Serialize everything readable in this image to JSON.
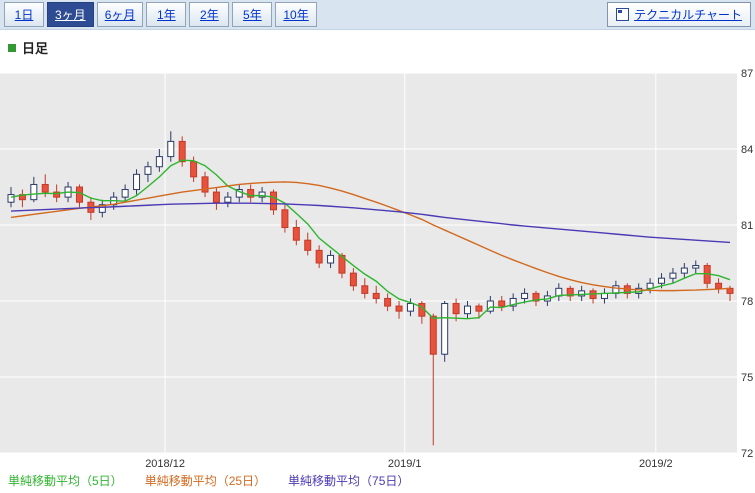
{
  "header": {
    "period_tabs": [
      {
        "label": "1日",
        "selected": false
      },
      {
        "label": "3ヶ月",
        "selected": true
      },
      {
        "label": "6ヶ月",
        "selected": false
      },
      {
        "label": "1年",
        "selected": false
      },
      {
        "label": "2年",
        "selected": false
      },
      {
        "label": "5年",
        "selected": false
      },
      {
        "label": "10年",
        "selected": false
      }
    ],
    "technical_chart_button": "テクニカルチャート"
  },
  "chart_header": {
    "label": "日足",
    "bullet_color": "#339933"
  },
  "chart_data": {
    "type": "candlestick",
    "title": "日足",
    "y_ticks": [
      87,
      84,
      81,
      78,
      75,
      72
    ],
    "ylim": [
      72,
      87
    ],
    "x_ticks": [
      {
        "label": "2018/12",
        "index": 14
      },
      {
        "label": "2019/1",
        "index": 35
      },
      {
        "label": "2019/2",
        "index": 57
      }
    ],
    "grid": true,
    "legend_position": "bottom",
    "candles": {
      "open": [
        81.9,
        82.2,
        82.0,
        82.6,
        82.3,
        82.1,
        82.5,
        81.9,
        81.5,
        81.8,
        82.1,
        82.4,
        83.0,
        83.3,
        83.7,
        84.3,
        83.5,
        82.9,
        82.3,
        81.9,
        82.1,
        82.4,
        82.1,
        82.3,
        81.6,
        80.9,
        80.4,
        80.0,
        79.5,
        79.8,
        79.1,
        78.6,
        78.3,
        78.1,
        77.8,
        77.6,
        77.9,
        77.4,
        75.9,
        77.9,
        77.5,
        77.8,
        77.6,
        78.0,
        77.8,
        78.1,
        78.3,
        78.0,
        78.2,
        78.5,
        78.2,
        78.4,
        78.1,
        78.3,
        78.6,
        78.3,
        78.5,
        78.7,
        78.9,
        79.1,
        79.3,
        79.4,
        78.7,
        78.5
      ],
      "high": [
        82.5,
        82.4,
        82.9,
        83.0,
        82.6,
        82.7,
        82.6,
        82.1,
        82.0,
        82.3,
        82.6,
        83.2,
        83.5,
        84.0,
        84.7,
        84.5,
        83.7,
        83.1,
        82.5,
        82.3,
        82.6,
        82.6,
        82.5,
        82.4,
        81.8,
        81.2,
        80.7,
        80.2,
        80.0,
        79.9,
        79.3,
        78.9,
        78.6,
        78.3,
        78.0,
        78.1,
        78.0,
        77.5,
        78.0,
        78.1,
        78.0,
        77.9,
        78.2,
        78.2,
        78.3,
        78.5,
        78.4,
        78.4,
        78.7,
        78.6,
        78.6,
        78.5,
        78.5,
        78.8,
        78.7,
        78.7,
        78.9,
        79.1,
        79.3,
        79.5,
        79.6,
        79.5,
        78.9,
        78.6
      ],
      "low": [
        81.7,
        81.7,
        81.9,
        82.1,
        81.9,
        81.9,
        81.7,
        81.2,
        81.3,
        81.6,
        81.9,
        82.2,
        82.7,
        83.1,
        83.5,
        83.3,
        82.7,
        82.1,
        81.6,
        81.7,
        81.9,
        81.9,
        81.9,
        81.4,
        80.7,
        80.2,
        79.8,
        79.3,
        79.3,
        78.9,
        78.4,
        78.1,
        77.9,
        77.6,
        77.3,
        77.4,
        77.1,
        72.3,
        75.6,
        77.2,
        77.3,
        77.3,
        77.5,
        77.6,
        77.6,
        77.9,
        77.8,
        77.8,
        78.0,
        78.0,
        78.0,
        77.9,
        77.9,
        78.1,
        78.1,
        78.1,
        78.3,
        78.5,
        78.7,
        78.9,
        79.1,
        78.5,
        78.3,
        78.0
      ],
      "close": [
        82.2,
        82.0,
        82.6,
        82.3,
        82.1,
        82.5,
        81.9,
        81.5,
        81.8,
        82.1,
        82.4,
        83.0,
        83.3,
        83.7,
        84.3,
        83.5,
        82.9,
        82.3,
        81.9,
        82.1,
        82.4,
        82.1,
        82.3,
        81.6,
        80.9,
        80.4,
        80.0,
        79.5,
        79.8,
        79.1,
        78.6,
        78.3,
        78.1,
        77.8,
        77.6,
        77.9,
        77.4,
        75.9,
        77.9,
        77.5,
        77.8,
        77.6,
        78.0,
        77.8,
        78.1,
        78.3,
        78.0,
        78.2,
        78.5,
        78.2,
        78.4,
        78.1,
        78.3,
        78.6,
        78.3,
        78.5,
        78.7,
        78.9,
        79.1,
        79.3,
        79.4,
        78.7,
        78.5,
        78.3
      ]
    },
    "series": [
      {
        "name": "単純移動平均（5日）",
        "color": "#2eb52e",
        "values": [
          82.1,
          82.18,
          82.22,
          82.25,
          82.24,
          82.3,
          82.28,
          82.06,
          81.96,
          81.96,
          81.94,
          82.16,
          82.52,
          82.9,
          83.34,
          83.56,
          83.54,
          83.34,
          82.98,
          82.54,
          82.32,
          82.16,
          82.16,
          82.1,
          81.86,
          81.46,
          81.04,
          80.48,
          80.12,
          79.76,
          79.4,
          79.06,
          78.78,
          78.38,
          78.08,
          77.94,
          77.76,
          77.32,
          77.34,
          77.32,
          77.3,
          77.34,
          77.76,
          77.74,
          77.86,
          77.96,
          78.04,
          78.08,
          78.22,
          78.24,
          78.26,
          78.28,
          78.3,
          78.32,
          78.34,
          78.36,
          78.48,
          78.6,
          78.7,
          78.9,
          79.08,
          79.08,
          79.0,
          78.84
        ]
      },
      {
        "name": "単純移動平均（25日）",
        "color": "#d2691e",
        "values": [
          81.3,
          81.36,
          81.42,
          81.48,
          81.54,
          81.6,
          81.66,
          81.71,
          81.76,
          81.82,
          81.9,
          81.98,
          82.06,
          82.14,
          82.22,
          82.3,
          82.36,
          82.42,
          82.48,
          82.54,
          82.6,
          82.64,
          82.67,
          82.69,
          82.7,
          82.68,
          82.63,
          82.56,
          82.46,
          82.34,
          82.2,
          82.05,
          81.9,
          81.74,
          81.57,
          81.4,
          81.22,
          81.0,
          80.8,
          80.6,
          80.4,
          80.2,
          80.0,
          79.8,
          79.62,
          79.45,
          79.28,
          79.12,
          78.97,
          78.84,
          78.73,
          78.64,
          78.57,
          78.51,
          78.47,
          78.44,
          78.42,
          78.41,
          78.41,
          78.42,
          78.43,
          78.45,
          78.47,
          78.5
        ]
      },
      {
        "name": "単純移動平均（75日）",
        "color": "#4a3ab5",
        "values": [
          81.55,
          81.57,
          81.59,
          81.61,
          81.63,
          81.65,
          81.67,
          81.69,
          81.7,
          81.72,
          81.74,
          81.76,
          81.78,
          81.8,
          81.82,
          81.83,
          81.84,
          81.85,
          81.86,
          81.86,
          81.86,
          81.86,
          81.85,
          81.84,
          81.83,
          81.81,
          81.79,
          81.77,
          81.74,
          81.71,
          81.68,
          81.64,
          81.6,
          81.56,
          81.52,
          81.47,
          81.42,
          81.36,
          81.3,
          81.25,
          81.2,
          81.15,
          81.1,
          81.05,
          81.0,
          80.96,
          80.92,
          80.88,
          80.84,
          80.8,
          80.76,
          80.72,
          80.68,
          80.64,
          80.6,
          80.56,
          80.52,
          80.49,
          80.46,
          80.43,
          80.4,
          80.37,
          80.34,
          80.31
        ]
      }
    ],
    "colors": {
      "plot_bg": "#e9e9e9",
      "grid": "#ffffff",
      "axis_text": "#333333",
      "up_fill": "#ffffff",
      "up_stroke": "#2b3a67",
      "down_fill": "#e8523c",
      "down_stroke": "#c23a28"
    }
  }
}
